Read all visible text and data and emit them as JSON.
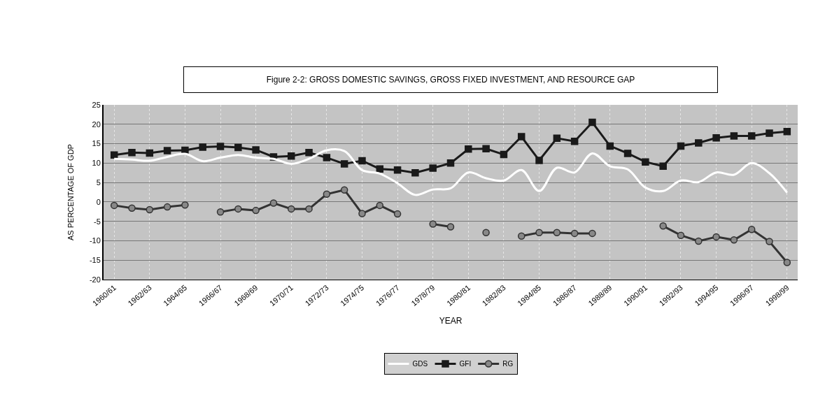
{
  "chart_data": {
    "type": "line",
    "title": "Figure 2-2: GROSS DOMESTIC SAVINGS, GROSS FIXED INVESTMENT, AND RESOURCE GAP",
    "xlabel": "YEAR",
    "ylabel": "AS PERCENTAGE OF GDP",
    "categories": [
      "1960/61",
      null,
      "1962/63",
      null,
      "1964/65",
      null,
      "1966/67",
      null,
      "1968/69",
      null,
      "1970/71",
      null,
      "1972/73",
      null,
      "1974/75",
      null,
      "1976/77",
      null,
      "1978/79",
      null,
      "1980/81",
      null,
      "1982/83",
      null,
      "1984/85",
      null,
      "1986/87",
      null,
      "1988/89",
      null,
      "1990/91",
      null,
      "1992/93",
      null,
      "1994/95",
      null,
      "1996/97",
      null,
      "1998/99"
    ],
    "series": [
      {
        "name": "GDS",
        "color": "#ffffff",
        "marker": "none",
        "values": [
          11.1,
          10.9,
          10.6,
          11.6,
          12.4,
          10.5,
          11.4,
          12.1,
          11.4,
          11.1,
          9.8,
          11.1,
          13.3,
          13.1,
          8.2,
          7.3,
          4.8,
          1.8,
          3.2,
          3.5,
          7.6,
          6.1,
          5.5,
          8.2,
          2.8,
          8.8,
          7.6,
          12.5,
          9.2,
          8.4,
          3.7,
          2.8,
          5.5,
          5.1,
          7.6,
          7.0,
          10.0,
          7.4,
          2.4
        ]
      },
      {
        "name": "GFI",
        "color": "#1a1a1a",
        "marker": "square",
        "values": [
          12.1,
          12.7,
          12.6,
          13.2,
          13.3,
          14.1,
          14.3,
          14.0,
          13.4,
          11.6,
          11.8,
          12.7,
          11.4,
          9.8,
          10.6,
          8.5,
          8.2,
          7.5,
          8.7,
          10.0,
          13.6,
          13.7,
          12.2,
          16.8,
          10.7,
          16.4,
          15.6,
          20.5,
          14.4,
          12.5,
          10.3,
          9.2,
          14.4,
          15.2,
          16.5,
          17.0,
          17.0,
          17.7,
          18.1
        ]
      },
      {
        "name": "RG",
        "color": "#333333",
        "marker": "circle",
        "values": [
          -0.9,
          -1.6,
          -2.0,
          -1.3,
          -0.8,
          null,
          -2.6,
          -1.8,
          -2.2,
          -0.3,
          -1.8,
          -1.8,
          2.0,
          3.1,
          -3.0,
          -0.9,
          -3.1,
          null,
          -5.7,
          -6.4,
          null,
          -7.9,
          null,
          -8.8,
          -7.9,
          -7.9,
          -8.1,
          -8.1,
          null,
          null,
          null,
          -6.2,
          -8.6,
          -10.1,
          -9.0,
          -9.8,
          -7.1,
          -10.2,
          -15.6
        ]
      }
    ],
    "ylim": [
      -20,
      25
    ],
    "yticks": [
      -20,
      -15,
      -10,
      -5,
      0,
      5,
      10,
      15,
      20,
      25
    ],
    "grid": true,
    "legend": "bottom",
    "line_style": "solid"
  }
}
